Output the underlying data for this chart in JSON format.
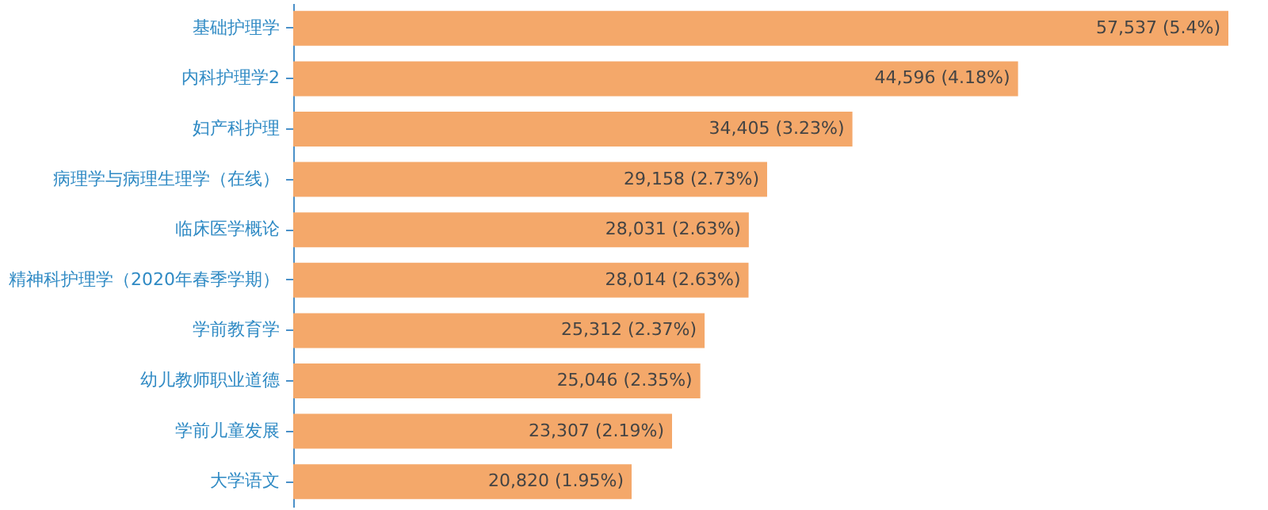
{
  "chart_data": {
    "type": "bar",
    "orientation": "horizontal",
    "categories": [
      "基础护理学",
      "内科护理学2",
      "妇产科护理",
      "病理学与病理生理学（在线）",
      "临床医学概论",
      "精神科护理学（2020年春季学期）",
      "学前教育学",
      "幼儿教师职业道德",
      "学前儿童发展",
      "大学语文"
    ],
    "values": [
      57537,
      44596,
      34405,
      29158,
      28031,
      28014,
      25312,
      25046,
      23307,
      20820
    ],
    "value_labels": [
      "57,537 (5.4%)",
      "44,596 (4.18%)",
      "34,405 (3.23%)",
      "29,158 (2.73%)",
      "28,031 (2.63%)",
      "28,014 (2.63%)",
      "25,312 (2.37%)",
      "25,046 (2.35%)",
      "23,307 (2.19%)",
      "20,820 (1.95%)"
    ],
    "color": "#f4a86a",
    "tick_labels": "y",
    "grid": false
  }
}
